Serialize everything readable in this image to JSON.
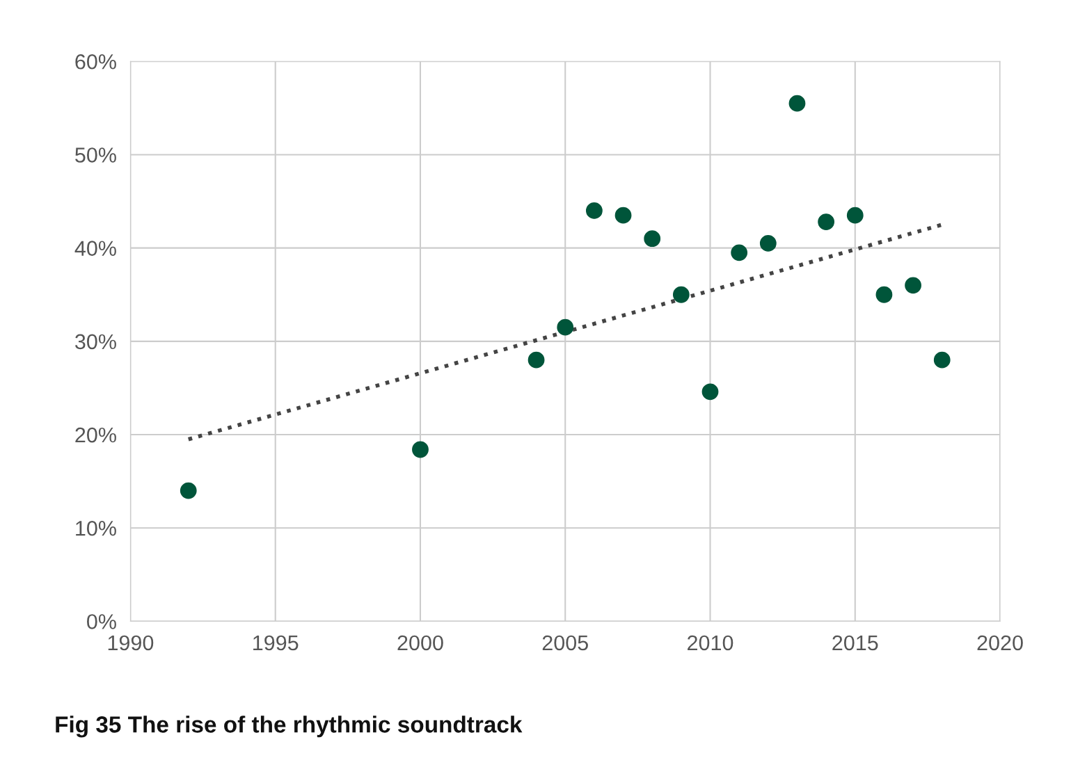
{
  "chart_data": {
    "type": "scatter",
    "title": "Fig 35 The rise of the rhythmic soundtrack",
    "series": [
      {
        "color": "#00553a",
        "x": [
          1992,
          2000,
          2004,
          2005,
          2006,
          2007,
          2008,
          2009,
          2010,
          2011,
          2012,
          2013,
          2014,
          2015,
          2016,
          2017,
          2018
        ],
        "values": [
          14,
          18.4,
          28,
          31.5,
          44,
          43.5,
          41,
          35,
          24.6,
          39.5,
          40.5,
          55.5,
          42.8,
          43.5,
          35,
          36,
          28
        ],
        "marker": "circle"
      },
      {
        "type": "line",
        "color": "#444444",
        "x": [
          1992,
          2018
        ],
        "values": [
          19.5,
          42.5
        ],
        "line_style": "dotted",
        "marker": "none"
      }
    ],
    "xlim": [
      1990,
      2020
    ],
    "xticks": [
      1990,
      1995,
      2000,
      2005,
      2010,
      2015,
      2020
    ],
    "ylim": [
      0,
      60
    ],
    "yticks": [
      {
        "value": 0,
        "label": "0%"
      },
      {
        "value": 10,
        "label": "10%"
      },
      {
        "value": 20,
        "label": "20%"
      },
      {
        "value": 30,
        "label": "30%"
      },
      {
        "value": 40,
        "label": "40%"
      },
      {
        "value": 50,
        "label": "50%"
      },
      {
        "value": 60,
        "label": "60%"
      }
    ],
    "grid": true,
    "legend": false
  }
}
